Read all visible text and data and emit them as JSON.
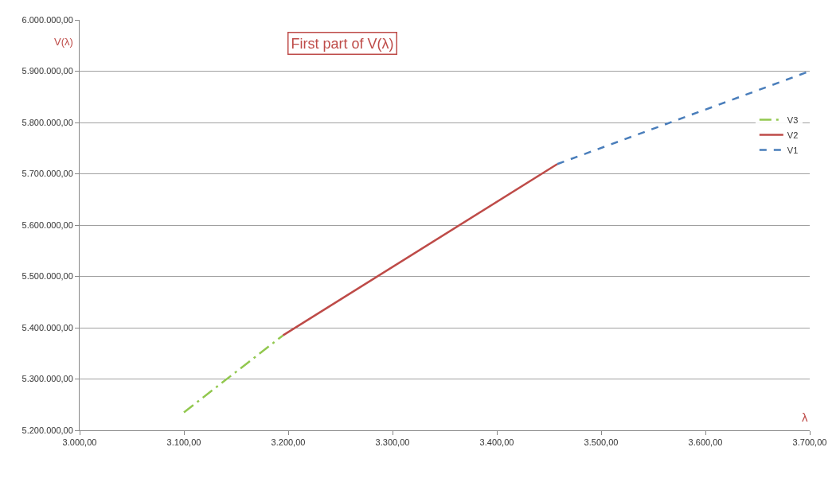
{
  "chart_data": {
    "type": "line",
    "title": "First part of V(λ)",
    "xlabel": "λ",
    "ylabel": "V(λ)",
    "series": [
      {
        "name": "V3",
        "color": "#92c84f",
        "line_style": "dashdot",
        "x": [
          3100,
          3195
        ],
        "values": [
          5235000,
          5385000
        ]
      },
      {
        "name": "V2",
        "color": "#be4b48",
        "line_style": "solid",
        "x": [
          3195,
          3458
        ],
        "values": [
          5385000,
          5719000
        ]
      },
      {
        "name": "V1",
        "color": "#4a7ebb",
        "line_style": "dashed",
        "x": [
          3458,
          3700
        ],
        "values": [
          5719000,
          5900000
        ]
      }
    ],
    "xlim": [
      3000,
      3700
    ],
    "xticks": [
      {
        "value": 3000,
        "label": "3.000,00"
      },
      {
        "value": 3100,
        "label": "3.100,00"
      },
      {
        "value": 3200,
        "label": "3.200,00"
      },
      {
        "value": 3300,
        "label": "3.300,00"
      },
      {
        "value": 3400,
        "label": "3.400,00"
      },
      {
        "value": 3500,
        "label": "3.500,00"
      },
      {
        "value": 3600,
        "label": "3.600,00"
      },
      {
        "value": 3700,
        "label": "3.700,00"
      }
    ],
    "ylim": [
      5200000,
      6000000
    ],
    "yticks": [
      {
        "value": 5200000,
        "label": "5.200.000,00"
      },
      {
        "value": 5300000,
        "label": "5.300.000,00"
      },
      {
        "value": 5400000,
        "label": "5.400.000,00"
      },
      {
        "value": 5500000,
        "label": "5.500.000,00"
      },
      {
        "value": 5600000,
        "label": "5.600.000,00"
      },
      {
        "value": 5700000,
        "label": "5.700.000,00"
      },
      {
        "value": 5800000,
        "label": "5.800.000,00"
      },
      {
        "value": 5900000,
        "label": "5.900.000,00"
      },
      {
        "value": 6000000,
        "label": "6.000.000,00"
      }
    ],
    "grid": "y",
    "legend": "right",
    "marker": "none"
  }
}
